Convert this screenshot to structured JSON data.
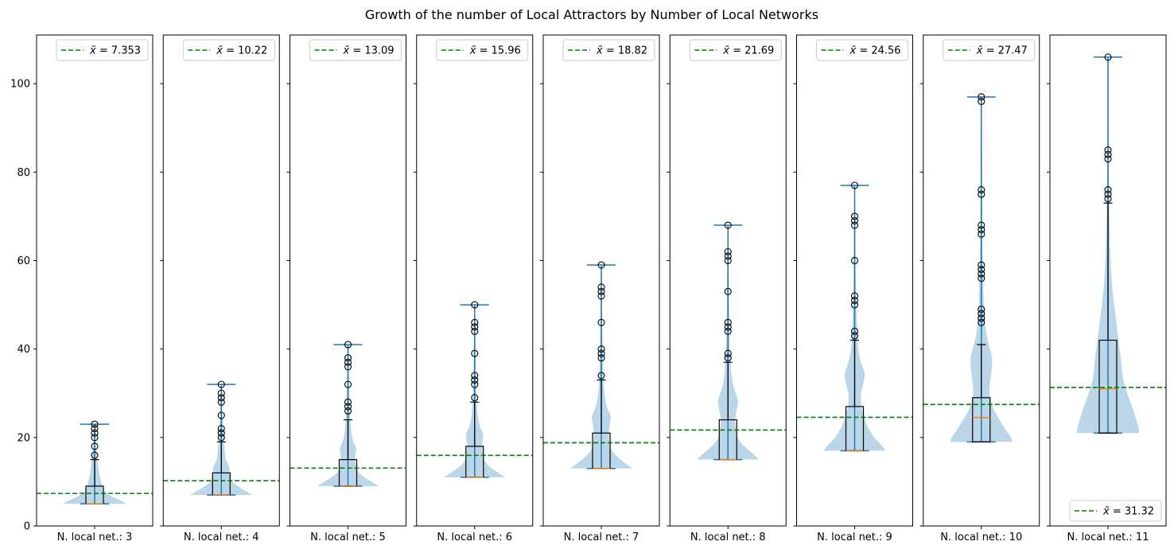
{
  "colors": {
    "violin_fill": "#1f77b4",
    "whisker_line": "#1f77b4",
    "box_edge": "#000000",
    "median_line": "#ff7f0e",
    "mean_line": "#008000",
    "outlier_marker": "#000000"
  },
  "chart_data": {
    "type": "violin-box",
    "title": "Growth of the number of Local Attractors by Number of Local Networks",
    "ylim": [
      0,
      111
    ],
    "yticks": [
      0,
      20,
      40,
      60,
      80,
      100
    ],
    "grid": false,
    "shared_y": true,
    "legend_marker": "dashed-line",
    "panels": [
      {
        "label": "N. local net.: 3",
        "mean": 7.353,
        "mean_label": "$\\bar{x} = 7.353$",
        "legend_loc": "upper right",
        "min": 5,
        "max": 23,
        "q1": 5,
        "median": 5,
        "q3": 9,
        "whisker_low": 5,
        "whisker_high": 15,
        "outliers": [
          16,
          18,
          20,
          21,
          22,
          23
        ],
        "violin": [
          [
            5,
            0.75
          ],
          [
            6,
            0.55
          ],
          [
            7,
            0.32
          ],
          [
            8,
            0.2
          ],
          [
            9,
            0.18
          ],
          [
            10,
            0.15
          ],
          [
            12,
            0.1
          ],
          [
            14,
            0.08
          ],
          [
            16,
            0.05
          ],
          [
            18,
            0.03
          ],
          [
            20,
            0.02
          ],
          [
            23,
            0.01
          ]
        ]
      },
      {
        "label": "N. local net.: 4",
        "mean": 10.22,
        "mean_label": "$\\bar{x} = 10.22$",
        "legend_loc": "upper right",
        "min": 7,
        "max": 32,
        "q1": 7,
        "median": 7,
        "q3": 12,
        "whisker_low": 7,
        "whisker_high": 19,
        "outliers": [
          20,
          21,
          22,
          25,
          28,
          29,
          30,
          32
        ],
        "violin": [
          [
            7,
            0.72
          ],
          [
            8,
            0.55
          ],
          [
            9,
            0.38
          ],
          [
            10,
            0.25
          ],
          [
            11,
            0.2
          ],
          [
            12,
            0.18
          ],
          [
            13,
            0.2
          ],
          [
            14,
            0.16
          ],
          [
            15,
            0.1
          ],
          [
            17,
            0.08
          ],
          [
            20,
            0.05
          ],
          [
            24,
            0.03
          ],
          [
            28,
            0.02
          ],
          [
            32,
            0.01
          ]
        ]
      },
      {
        "label": "N. local net.: 5",
        "mean": 13.09,
        "mean_label": "$\\bar{x} = 13.09$",
        "legend_loc": "upper right",
        "min": 9,
        "max": 41,
        "q1": 9,
        "median": 9,
        "q3": 15,
        "whisker_low": 9,
        "whisker_high": 24,
        "outliers": [
          26,
          27,
          28,
          32,
          36,
          37,
          38,
          41
        ],
        "violin": [
          [
            9,
            0.72
          ],
          [
            10,
            0.55
          ],
          [
            11,
            0.38
          ],
          [
            12,
            0.25
          ],
          [
            13,
            0.2
          ],
          [
            14,
            0.18
          ],
          [
            16,
            0.16
          ],
          [
            17,
            0.2
          ],
          [
            18,
            0.18
          ],
          [
            19,
            0.12
          ],
          [
            21,
            0.08
          ],
          [
            24,
            0.05
          ],
          [
            28,
            0.03
          ],
          [
            34,
            0.02
          ],
          [
            41,
            0.01
          ]
        ]
      },
      {
        "label": "N. local net.: 6",
        "mean": 15.96,
        "mean_label": "$\\bar{x} = 15.96$",
        "legend_loc": "upper right",
        "min": 11,
        "max": 50,
        "q1": 11,
        "median": 11,
        "q3": 18,
        "whisker_low": 11,
        "whisker_high": 28,
        "outliers": [
          29,
          32,
          33,
          34,
          39,
          44,
          45,
          46,
          50
        ],
        "violin": [
          [
            11,
            0.72
          ],
          [
            12,
            0.55
          ],
          [
            13,
            0.4
          ],
          [
            14,
            0.28
          ],
          [
            15,
            0.22
          ],
          [
            16,
            0.2
          ],
          [
            18,
            0.17
          ],
          [
            20,
            0.2
          ],
          [
            21,
            0.2
          ],
          [
            22,
            0.14
          ],
          [
            24,
            0.08
          ],
          [
            27,
            0.05
          ],
          [
            32,
            0.03
          ],
          [
            40,
            0.02
          ],
          [
            50,
            0.01
          ]
        ]
      },
      {
        "label": "N. local net.: 7",
        "mean": 18.82,
        "mean_label": "$\\bar{x} = 18.82$",
        "legend_loc": "upper right",
        "min": 13,
        "max": 59,
        "q1": 13,
        "median": 13,
        "q3": 21,
        "whisker_low": 13,
        "whisker_high": 33,
        "outliers": [
          34,
          38,
          39,
          40,
          46,
          52,
          53,
          54,
          59
        ],
        "violin": [
          [
            13,
            0.72
          ],
          [
            14,
            0.58
          ],
          [
            15,
            0.45
          ],
          [
            16,
            0.33
          ],
          [
            17,
            0.25
          ],
          [
            18,
            0.2
          ],
          [
            20,
            0.17
          ],
          [
            22,
            0.18
          ],
          [
            24,
            0.22
          ],
          [
            25,
            0.22
          ],
          [
            26,
            0.16
          ],
          [
            28,
            0.1
          ],
          [
            31,
            0.06
          ],
          [
            36,
            0.04
          ],
          [
            45,
            0.02
          ],
          [
            59,
            0.01
          ]
        ]
      },
      {
        "label": "N. local net.: 8",
        "mean": 21.69,
        "mean_label": "$\\bar{x} = 21.69$",
        "legend_loc": "upper right",
        "min": 15,
        "max": 68,
        "q1": 15,
        "median": 15,
        "q3": 24,
        "whisker_low": 15,
        "whisker_high": 37,
        "outliers": [
          38,
          39,
          44,
          45,
          46,
          53,
          60,
          61,
          62,
          68
        ],
        "violin": [
          [
            15,
            0.72
          ],
          [
            16,
            0.62
          ],
          [
            17,
            0.5
          ],
          [
            18,
            0.38
          ],
          [
            19,
            0.28
          ],
          [
            20,
            0.22
          ],
          [
            22,
            0.18
          ],
          [
            24,
            0.16
          ],
          [
            26,
            0.2
          ],
          [
            28,
            0.24
          ],
          [
            29,
            0.22
          ],
          [
            31,
            0.14
          ],
          [
            34,
            0.08
          ],
          [
            38,
            0.05
          ],
          [
            45,
            0.03
          ],
          [
            55,
            0.02
          ],
          [
            68,
            0.01
          ]
        ]
      },
      {
        "label": "N. local net.: 9",
        "mean": 24.56,
        "mean_label": "$\\bar{x} = 24.56$",
        "legend_loc": "upper right",
        "min": 17,
        "max": 77,
        "q1": 17,
        "median": 17,
        "q3": 27,
        "whisker_low": 17,
        "whisker_high": 42,
        "outliers": [
          43,
          44,
          50,
          51,
          52,
          60,
          68,
          69,
          70,
          77
        ],
        "violin": [
          [
            17,
            0.72
          ],
          [
            18,
            0.65
          ],
          [
            19,
            0.55
          ],
          [
            20,
            0.45
          ],
          [
            22,
            0.32
          ],
          [
            24,
            0.24
          ],
          [
            26,
            0.18
          ],
          [
            28,
            0.14
          ],
          [
            30,
            0.14
          ],
          [
            32,
            0.2
          ],
          [
            34,
            0.24
          ],
          [
            35,
            0.22
          ],
          [
            37,
            0.14
          ],
          [
            40,
            0.08
          ],
          [
            45,
            0.05
          ],
          [
            52,
            0.03
          ],
          [
            62,
            0.02
          ],
          [
            77,
            0.01
          ]
        ]
      },
      {
        "label": "N. local net.: 10",
        "mean": 27.47,
        "mean_label": "$\\bar{x} = 27.47$",
        "legend_loc": "upper right",
        "min": 19,
        "max": 97,
        "q1": 19,
        "median": 24.5,
        "q3": 29,
        "whisker_low": 19,
        "whisker_high": 41,
        "outliers": [
          46,
          47,
          48,
          49,
          56,
          57,
          58,
          59,
          66,
          67,
          68,
          75,
          76,
          96,
          97
        ],
        "violin": [
          [
            19,
            0.72
          ],
          [
            20,
            0.7
          ],
          [
            21,
            0.62
          ],
          [
            22,
            0.55
          ],
          [
            24,
            0.42
          ],
          [
            26,
            0.3
          ],
          [
            28,
            0.22
          ],
          [
            30,
            0.18
          ],
          [
            32,
            0.2
          ],
          [
            35,
            0.24
          ],
          [
            38,
            0.26
          ],
          [
            40,
            0.2
          ],
          [
            43,
            0.12
          ],
          [
            47,
            0.07
          ],
          [
            52,
            0.05
          ],
          [
            60,
            0.03
          ],
          [
            75,
            0.02
          ],
          [
            97,
            0.01
          ]
        ]
      },
      {
        "label": "N. local net.: 11",
        "mean": 31.32,
        "mean_label": "$\\bar{x} = 31.32$",
        "legend_loc": "lower right",
        "min": 21,
        "max": 106,
        "q1": 21,
        "median": 31,
        "q3": 42,
        "whisker_low": 21,
        "whisker_high": 73,
        "outliers": [
          74,
          75,
          76,
          83,
          84,
          85,
          106
        ],
        "violin": [
          [
            21,
            0.72
          ],
          [
            22,
            0.72
          ],
          [
            24,
            0.66
          ],
          [
            26,
            0.6
          ],
          [
            28,
            0.52
          ],
          [
            30,
            0.45
          ],
          [
            32,
            0.38
          ],
          [
            34,
            0.34
          ],
          [
            36,
            0.32
          ],
          [
            38,
            0.3
          ],
          [
            40,
            0.27
          ],
          [
            44,
            0.22
          ],
          [
            48,
            0.17
          ],
          [
            52,
            0.12
          ],
          [
            56,
            0.08
          ],
          [
            62,
            0.05
          ],
          [
            70,
            0.03
          ],
          [
            80,
            0.02
          ],
          [
            90,
            0.01
          ],
          [
            106,
            0.005
          ]
        ]
      }
    ]
  }
}
